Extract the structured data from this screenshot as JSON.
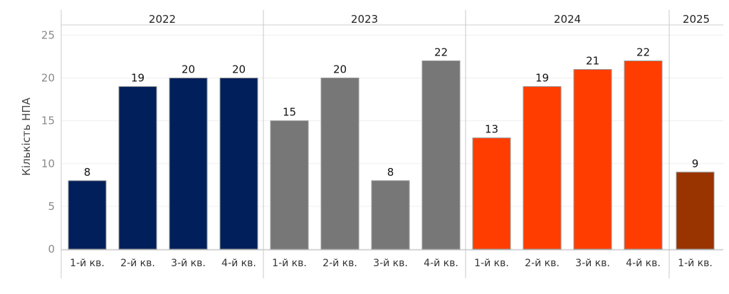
{
  "chart_data": {
    "type": "bar",
    "ylabel": "Кількість НПА",
    "ylim": [
      0,
      25
    ],
    "yticks": [
      0,
      5,
      10,
      15,
      20,
      25
    ],
    "grid": true,
    "legend": "none",
    "groups": [
      {
        "year": "2022",
        "color": "#001f5b",
        "categories": [
          "1-й кв.",
          "2-й кв.",
          "3-й кв.",
          "4-й кв."
        ],
        "values": [
          8,
          19,
          20,
          20
        ]
      },
      {
        "year": "2023",
        "color": "#777777",
        "categories": [
          "1-й кв.",
          "2-й кв.",
          "3-й кв.",
          "4-й кв."
        ],
        "values": [
          15,
          20,
          8,
          22
        ]
      },
      {
        "year": "2024",
        "color": "#ff3d00",
        "categories": [
          "1-й кв.",
          "2-й кв.",
          "3-й кв.",
          "4-й кв."
        ],
        "values": [
          13,
          19,
          21,
          22
        ]
      },
      {
        "year": "2025",
        "color": "#993300",
        "categories": [
          "1-й кв."
        ],
        "values": [
          9
        ]
      }
    ]
  }
}
